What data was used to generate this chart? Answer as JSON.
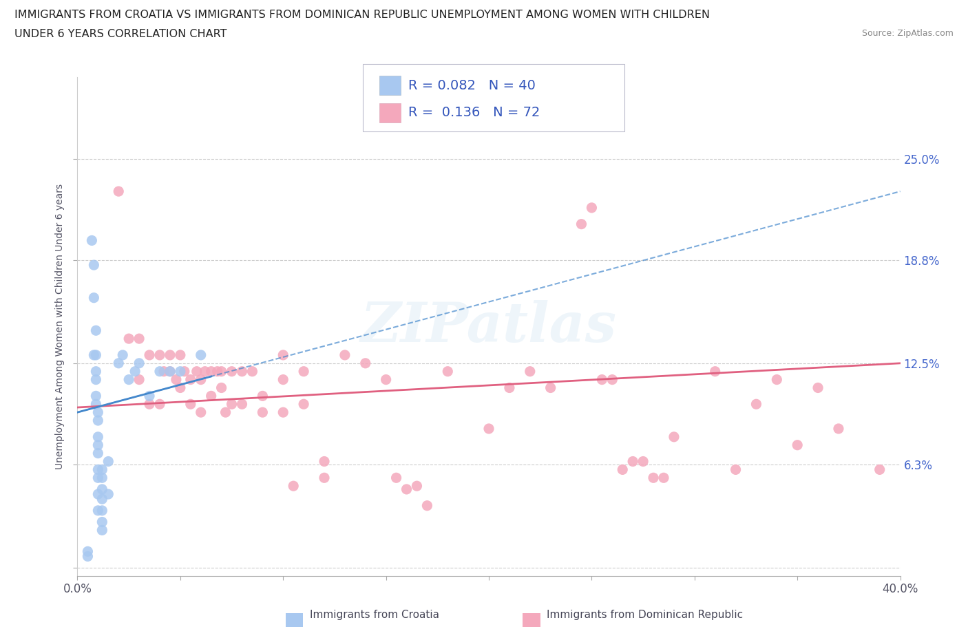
{
  "title_line1": "IMMIGRANTS FROM CROATIA VS IMMIGRANTS FROM DOMINICAN REPUBLIC UNEMPLOYMENT AMONG WOMEN WITH CHILDREN",
  "title_line2": "UNDER 6 YEARS CORRELATION CHART",
  "source": "Source: ZipAtlas.com",
  "ylabel": "Unemployment Among Women with Children Under 6 years",
  "xlim": [
    0.0,
    0.4
  ],
  "ylim": [
    -0.005,
    0.3
  ],
  "ytick_vals": [
    0.0,
    0.063,
    0.125,
    0.188,
    0.25
  ],
  "ytick_labels": [
    "",
    "6.3%",
    "12.5%",
    "18.8%",
    "25.0%"
  ],
  "croatia_color": "#a8c8f0",
  "dominican_color": "#f4a8bc",
  "croatia_line_color": "#4488cc",
  "dominican_line_color": "#e06080",
  "legend_text_color": "#3355bb",
  "tick_color": "#4466cc",
  "croatia_R": 0.082,
  "croatia_N": 40,
  "dominican_R": 0.136,
  "dominican_N": 72,
  "watermark": "ZIPatlas",
  "croatia_scatter_x": [
    0.005,
    0.005,
    0.007,
    0.008,
    0.008,
    0.009,
    0.009,
    0.009,
    0.009,
    0.009,
    0.009,
    0.01,
    0.01,
    0.01,
    0.01,
    0.01,
    0.01,
    0.01,
    0.01,
    0.01,
    0.012,
    0.012,
    0.012,
    0.012,
    0.012,
    0.012,
    0.012,
    0.015,
    0.015,
    0.02,
    0.022,
    0.025,
    0.028,
    0.03,
    0.035,
    0.04,
    0.045,
    0.05,
    0.06,
    0.008
  ],
  "croatia_scatter_y": [
    0.01,
    0.007,
    0.2,
    0.185,
    0.165,
    0.145,
    0.13,
    0.12,
    0.115,
    0.105,
    0.1,
    0.095,
    0.09,
    0.08,
    0.075,
    0.07,
    0.06,
    0.055,
    0.045,
    0.035,
    0.06,
    0.055,
    0.048,
    0.042,
    0.035,
    0.028,
    0.023,
    0.065,
    0.045,
    0.125,
    0.13,
    0.115,
    0.12,
    0.125,
    0.105,
    0.12,
    0.12,
    0.12,
    0.13,
    0.13
  ],
  "dominican_scatter_x": [
    0.02,
    0.025,
    0.03,
    0.03,
    0.035,
    0.035,
    0.04,
    0.04,
    0.042,
    0.045,
    0.045,
    0.048,
    0.05,
    0.05,
    0.052,
    0.055,
    0.055,
    0.058,
    0.06,
    0.06,
    0.062,
    0.065,
    0.065,
    0.068,
    0.07,
    0.07,
    0.072,
    0.075,
    0.075,
    0.08,
    0.08,
    0.085,
    0.09,
    0.09,
    0.1,
    0.1,
    0.1,
    0.105,
    0.11,
    0.11,
    0.12,
    0.12,
    0.13,
    0.14,
    0.15,
    0.155,
    0.16,
    0.165,
    0.17,
    0.18,
    0.2,
    0.21,
    0.22,
    0.23,
    0.245,
    0.25,
    0.255,
    0.26,
    0.265,
    0.27,
    0.275,
    0.28,
    0.285,
    0.29,
    0.31,
    0.32,
    0.33,
    0.34,
    0.35,
    0.36,
    0.37,
    0.39
  ],
  "dominican_scatter_y": [
    0.23,
    0.14,
    0.14,
    0.115,
    0.13,
    0.1,
    0.13,
    0.1,
    0.12,
    0.13,
    0.12,
    0.115,
    0.13,
    0.11,
    0.12,
    0.115,
    0.1,
    0.12,
    0.115,
    0.095,
    0.12,
    0.12,
    0.105,
    0.12,
    0.12,
    0.11,
    0.095,
    0.12,
    0.1,
    0.12,
    0.1,
    0.12,
    0.105,
    0.095,
    0.13,
    0.115,
    0.095,
    0.05,
    0.12,
    0.1,
    0.065,
    0.055,
    0.13,
    0.125,
    0.115,
    0.055,
    0.048,
    0.05,
    0.038,
    0.12,
    0.085,
    0.11,
    0.12,
    0.11,
    0.21,
    0.22,
    0.115,
    0.115,
    0.06,
    0.065,
    0.065,
    0.055,
    0.055,
    0.08,
    0.12,
    0.06,
    0.1,
    0.115,
    0.075,
    0.11,
    0.085,
    0.06
  ],
  "croatia_line_x": [
    0.0,
    0.4
  ],
  "dominican_line_x": [
    0.0,
    0.4
  ],
  "croatia_line_start_y": 0.095,
  "croatia_line_end_y": 0.23,
  "dominican_line_start_y": 0.098,
  "dominican_line_end_y": 0.125
}
